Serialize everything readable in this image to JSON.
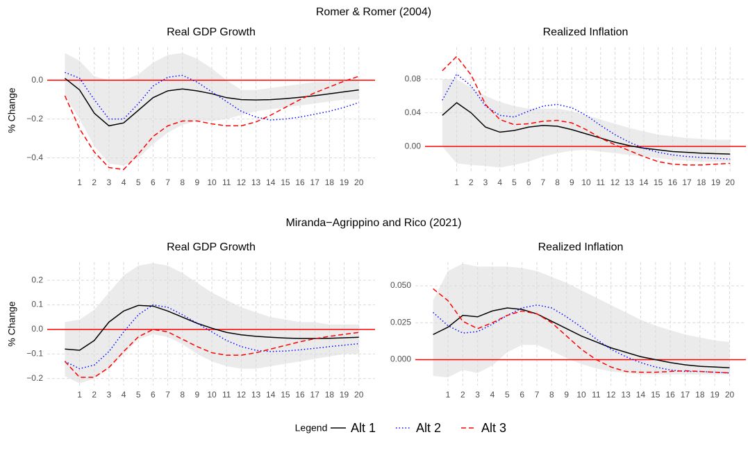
{
  "figure": {
    "sections": [
      "Romer & Romer (2004)",
      "Miranda−Agrippino and Rico (2021)"
    ],
    "legend_title": "Legend"
  },
  "chart_data": [
    {
      "type": "line",
      "title": "Real GDP Growth",
      "y_label": "% Change",
      "x": [
        0,
        1,
        2,
        3,
        4,
        5,
        6,
        7,
        8,
        9,
        10,
        11,
        12,
        13,
        14,
        15,
        16,
        17,
        18,
        19,
        20
      ],
      "xlim": [
        -1.2,
        21.1
      ],
      "xticks": [
        1,
        2,
        3,
        4,
        5,
        6,
        7,
        8,
        9,
        10,
        11,
        12,
        13,
        14,
        15,
        16,
        17,
        18,
        19,
        20
      ],
      "ylim": [
        -0.48,
        0.17
      ],
      "yticks": [
        {
          "value": -0.4,
          "label": "−0.4"
        },
        {
          "value": -0.2,
          "label": "−0.2"
        },
        {
          "value": 0,
          "label": "0.0"
        }
      ],
      "grid": true,
      "reference_line": 0,
      "reference_color": "#ff0000",
      "band": {
        "color": "#ebebeb",
        "upper": [
          0.14,
          0.1,
          0.02,
          0.0,
          0.0,
          0.03,
          0.09,
          0.13,
          0.14,
          0.11,
          0.06,
          0.0,
          -0.05,
          -0.05,
          -0.04,
          -0.03,
          -0.02,
          -0.01,
          -0.01,
          0.0,
          0.0
        ],
        "lower": [
          -0.08,
          -0.2,
          -0.34,
          -0.43,
          -0.44,
          -0.4,
          -0.33,
          -0.27,
          -0.23,
          -0.21,
          -0.21,
          -0.2,
          -0.18,
          -0.16,
          -0.15,
          -0.14,
          -0.13,
          -0.12,
          -0.11,
          -0.1,
          -0.1
        ]
      },
      "series": [
        {
          "name": "Alt 1",
          "color": "#000000",
          "linestyle": "solid",
          "values": [
            0.01,
            -0.05,
            -0.17,
            -0.235,
            -0.22,
            -0.155,
            -0.09,
            -0.055,
            -0.045,
            -0.055,
            -0.07,
            -0.09,
            -0.1,
            -0.102,
            -0.1,
            -0.095,
            -0.088,
            -0.08,
            -0.07,
            -0.06,
            -0.05
          ]
        },
        {
          "name": "Alt 2",
          "color": "#0000ff",
          "linestyle": "dotted",
          "values": [
            0.04,
            0.01,
            -0.1,
            -0.2,
            -0.2,
            -0.12,
            -0.03,
            0.015,
            0.025,
            -0.01,
            -0.06,
            -0.11,
            -0.16,
            -0.19,
            -0.205,
            -0.2,
            -0.19,
            -0.175,
            -0.16,
            -0.14,
            -0.115
          ]
        },
        {
          "name": "Alt 3",
          "color": "#ff0000",
          "linestyle": "dashed",
          "values": [
            -0.08,
            -0.25,
            -0.37,
            -0.45,
            -0.46,
            -0.38,
            -0.29,
            -0.235,
            -0.21,
            -0.21,
            -0.225,
            -0.235,
            -0.235,
            -0.215,
            -0.18,
            -0.14,
            -0.1,
            -0.065,
            -0.035,
            -0.005,
            0.02
          ]
        }
      ]
    },
    {
      "type": "line",
      "title": "Realized Inflation",
      "x": [
        0,
        1,
        2,
        3,
        4,
        5,
        6,
        7,
        8,
        9,
        10,
        11,
        12,
        13,
        14,
        15,
        16,
        17,
        18,
        19,
        20
      ],
      "xlim": [
        -1.2,
        21.1
      ],
      "xticks": [
        1,
        2,
        3,
        4,
        5,
        6,
        7,
        8,
        9,
        10,
        11,
        12,
        13,
        14,
        15,
        16,
        17,
        18,
        19,
        20
      ],
      "ylim": [
        -0.032,
        0.118
      ],
      "yticks": [
        {
          "value": 0,
          "label": "0.00"
        },
        {
          "value": 0.04,
          "label": "0.04"
        },
        {
          "value": 0.08,
          "label": "0.08"
        }
      ],
      "grid": true,
      "reference_line": 0,
      "reference_color": "#ff0000",
      "band": {
        "color": "#ebebeb",
        "upper": [
          0.08,
          0.08,
          0.07,
          0.06,
          0.053,
          0.048,
          0.045,
          0.045,
          0.045,
          0.042,
          0.037,
          0.032,
          0.027,
          0.022,
          0.018,
          0.014,
          0.012,
          0.01,
          0.009,
          0.008,
          0.008
        ],
        "lower": [
          0.0,
          -0.02,
          -0.022,
          -0.023,
          -0.025,
          -0.022,
          -0.018,
          -0.012,
          -0.008,
          -0.005,
          -0.004,
          -0.006,
          -0.008,
          -0.01,
          -0.012,
          -0.014,
          -0.016,
          -0.017,
          -0.018,
          -0.018,
          -0.018
        ]
      },
      "series": [
        {
          "color": "#000000",
          "linestyle": "solid",
          "values": [
            0.037,
            0.052,
            0.04,
            0.023,
            0.017,
            0.019,
            0.023,
            0.025,
            0.024,
            0.02,
            0.015,
            0.01,
            0.005,
            0.001,
            -0.002,
            -0.004,
            -0.006,
            -0.007,
            -0.008,
            -0.0085,
            -0.009
          ]
        },
        {
          "color": "#0000ff",
          "linestyle": "dotted",
          "values": [
            0.055,
            0.086,
            0.072,
            0.048,
            0.037,
            0.035,
            0.042,
            0.048,
            0.05,
            0.046,
            0.037,
            0.025,
            0.014,
            0.005,
            -0.002,
            -0.007,
            -0.01,
            -0.012,
            -0.013,
            -0.014,
            -0.015
          ]
        },
        {
          "color": "#ff0000",
          "linestyle": "dashed",
          "values": [
            0.09,
            0.107,
            0.085,
            0.05,
            0.032,
            0.026,
            0.027,
            0.03,
            0.031,
            0.028,
            0.02,
            0.01,
            0.002,
            -0.005,
            -0.012,
            -0.018,
            -0.021,
            -0.022,
            -0.022,
            -0.021,
            -0.02
          ]
        }
      ]
    },
    {
      "type": "line",
      "title": "Real GDP Growth",
      "y_label": "% Change",
      "x": [
        0,
        1,
        2,
        3,
        4,
        5,
        6,
        7,
        8,
        9,
        10,
        11,
        12,
        13,
        14,
        15,
        16,
        17,
        18,
        19,
        20
      ],
      "xlim": [
        -1.2,
        21.1
      ],
      "xticks": [
        1,
        2,
        3,
        4,
        5,
        6,
        7,
        8,
        9,
        10,
        11,
        12,
        13,
        14,
        15,
        16,
        17,
        18,
        19,
        20
      ],
      "ylim": [
        -0.229,
        0.274
      ],
      "yticks": [
        {
          "value": -0.2,
          "label": "−0.2"
        },
        {
          "value": -0.1,
          "label": "−0.1"
        },
        {
          "value": 0,
          "label": "0.0"
        },
        0.1,
        0.2
      ],
      "grid": true,
      "reference_line": 0,
      "reference_color": "#ff0000",
      "band": {
        "color": "#ebebeb",
        "upper": [
          0.03,
          0.04,
          0.08,
          0.15,
          0.22,
          0.26,
          0.27,
          0.26,
          0.23,
          0.19,
          0.15,
          0.12,
          0.09,
          0.07,
          0.05,
          0.04,
          0.03,
          0.03,
          0.02,
          0.02,
          0.02
        ],
        "lower": [
          -0.19,
          -0.22,
          -0.2,
          -0.16,
          -0.1,
          -0.04,
          -0.02,
          -0.03,
          -0.06,
          -0.1,
          -0.13,
          -0.15,
          -0.16,
          -0.16,
          -0.15,
          -0.14,
          -0.13,
          -0.12,
          -0.11,
          -0.1,
          -0.1
        ]
      },
      "series": [
        {
          "color": "#000000",
          "linestyle": "solid",
          "values": [
            -0.08,
            -0.085,
            -0.045,
            0.03,
            0.075,
            0.098,
            0.095,
            0.075,
            0.05,
            0.025,
            0.005,
            -0.012,
            -0.022,
            -0.028,
            -0.032,
            -0.035,
            -0.037,
            -0.037,
            -0.036,
            -0.034,
            -0.032
          ]
        },
        {
          "color": "#0000ff",
          "linestyle": "dotted",
          "values": [
            -0.13,
            -0.16,
            -0.145,
            -0.09,
            -0.01,
            0.06,
            0.1,
            0.09,
            0.06,
            0.025,
            -0.01,
            -0.045,
            -0.07,
            -0.085,
            -0.09,
            -0.088,
            -0.083,
            -0.077,
            -0.07,
            -0.064,
            -0.058
          ]
        },
        {
          "color": "#ff0000",
          "linestyle": "dashed",
          "values": [
            -0.13,
            -0.195,
            -0.195,
            -0.155,
            -0.09,
            -0.03,
            0.0,
            -0.01,
            -0.04,
            -0.07,
            -0.095,
            -0.105,
            -0.105,
            -0.095,
            -0.08,
            -0.065,
            -0.05,
            -0.038,
            -0.028,
            -0.02,
            -0.012
          ]
        }
      ]
    },
    {
      "type": "line",
      "title": "Realized Inflation",
      "x": [
        0,
        1,
        2,
        3,
        4,
        5,
        6,
        7,
        8,
        9,
        10,
        11,
        12,
        13,
        14,
        15,
        16,
        17,
        18,
        19,
        20
      ],
      "xlim": [
        -1.2,
        21.1
      ],
      "xticks": [
        1,
        2,
        3,
        4,
        5,
        6,
        7,
        8,
        9,
        10,
        11,
        12,
        13,
        14,
        15,
        16,
        17,
        18,
        19,
        20
      ],
      "ylim": [
        -0.0176,
        0.066
      ],
      "yticks": [
        {
          "value": 0,
          "label": "0.000"
        },
        {
          "value": 0.025,
          "label": "0.025"
        },
        {
          "value": 0.05,
          "label": "0.050"
        }
      ],
      "grid": true,
      "reference_line": 0,
      "reference_color": "#ff0000",
      "band": {
        "color": "#ebebeb",
        "upper": [
          0.04,
          0.06,
          0.065,
          0.063,
          0.063,
          0.063,
          0.062,
          0.06,
          0.056,
          0.052,
          0.047,
          0.042,
          0.037,
          0.032,
          0.027,
          0.023,
          0.02,
          0.017,
          0.015,
          0.013,
          0.012
        ],
        "lower": [
          -0.011,
          -0.012,
          -0.007,
          -0.009,
          -0.004,
          0.005,
          0.01,
          0.01,
          0.006,
          0.001,
          -0.003,
          -0.006,
          -0.008,
          -0.009,
          -0.01,
          -0.01,
          -0.01,
          -0.01,
          -0.01,
          -0.01,
          -0.01
        ]
      },
      "series": [
        {
          "color": "#000000",
          "linestyle": "solid",
          "values": [
            0.017,
            0.022,
            0.03,
            0.029,
            0.033,
            0.035,
            0.034,
            0.031,
            0.026,
            0.021,
            0.016,
            0.012,
            0.008,
            0.005,
            0.002,
            0.0,
            -0.002,
            -0.0035,
            -0.0045,
            -0.005,
            -0.0055
          ]
        },
        {
          "color": "#0000ff",
          "linestyle": "dotted",
          "values": [
            0.032,
            0.023,
            0.018,
            0.019,
            0.024,
            0.03,
            0.035,
            0.037,
            0.035,
            0.029,
            0.022,
            0.014,
            0.007,
            0.002,
            -0.002,
            -0.005,
            -0.007,
            -0.008,
            -0.008,
            -0.0085,
            -0.009
          ]
        },
        {
          "color": "#ff0000",
          "linestyle": "dashed",
          "values": [
            0.048,
            0.04,
            0.026,
            0.021,
            0.025,
            0.03,
            0.033,
            0.031,
            0.025,
            0.016,
            0.007,
            0.0,
            -0.005,
            -0.008,
            -0.0085,
            -0.0085,
            -0.008,
            -0.0075,
            -0.008,
            -0.0085,
            -0.009
          ]
        }
      ]
    }
  ]
}
